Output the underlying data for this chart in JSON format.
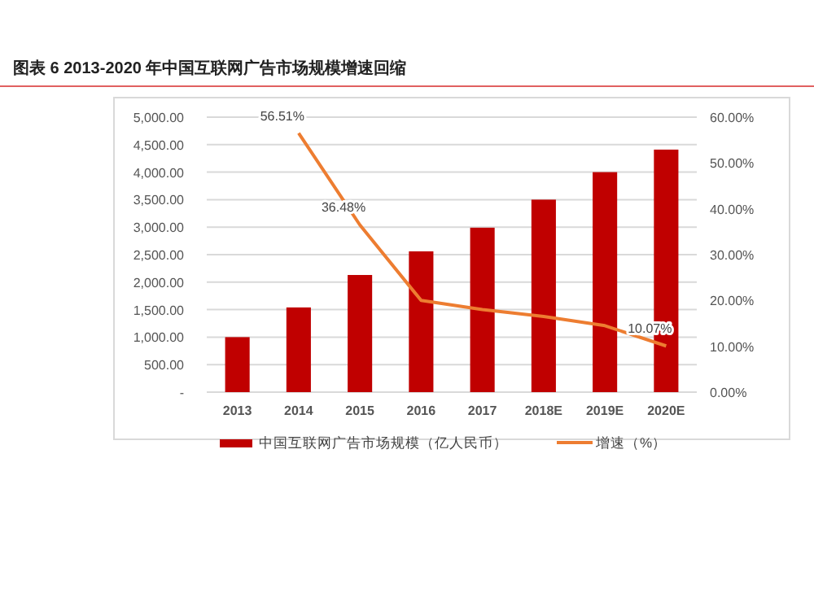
{
  "chart_data": {
    "type": "bar",
    "title": "图表 6 2013-2020 年中国互联网广告市场规模增速回缩",
    "categories": [
      "2013",
      "2014",
      "2015",
      "2016",
      "2017",
      "2018E",
      "2019E",
      "2020E"
    ],
    "series": [
      {
        "name": "中国互联网广告市场规模（亿人民币）",
        "color": "#c00000",
        "values": [
          1000,
          1540,
          2130,
          2560,
          2990,
          3500,
          4000,
          4410
        ]
      },
      {
        "name": "增速（%）",
        "type": "line",
        "axis": "y2",
        "color": "#ed7d31",
        "values": [
          null,
          56.51,
          36.48,
          20,
          18,
          16.5,
          14.5,
          10.07
        ],
        "value_labels": [
          null,
          "56.51%",
          "36.48%",
          null,
          null,
          null,
          null,
          "10.07%"
        ]
      }
    ],
    "ylim": [
      0,
      5000
    ],
    "yticks": [
      {
        "value": 0,
        "label": "-"
      },
      {
        "value": 500,
        "label": "500.00"
      },
      {
        "value": 1000,
        "label": "1,000.00"
      },
      {
        "value": 1500,
        "label": "1,500.00"
      },
      {
        "value": 2000,
        "label": "2,000.00"
      },
      {
        "value": 2500,
        "label": "2,500.00"
      },
      {
        "value": 3000,
        "label": "3,000.00"
      },
      {
        "value": 3500,
        "label": "3,500.00"
      },
      {
        "value": 4000,
        "label": "4,000.00"
      },
      {
        "value": 4500,
        "label": "4,500.00"
      },
      {
        "value": 5000,
        "label": "5,000.00"
      }
    ],
    "y2lim": [
      0,
      60
    ],
    "y2ticks": [
      {
        "value": 0,
        "label": "0.00%"
      },
      {
        "value": 10,
        "label": "10.00%"
      },
      {
        "value": 20,
        "label": "20.00%"
      },
      {
        "value": 30,
        "label": "30.00%"
      },
      {
        "value": 40,
        "label": "40.00%"
      },
      {
        "value": 50,
        "label": "50.00%"
      },
      {
        "value": 60,
        "label": "60.00%"
      }
    ],
    "grid": "y",
    "legend": "bottom"
  }
}
